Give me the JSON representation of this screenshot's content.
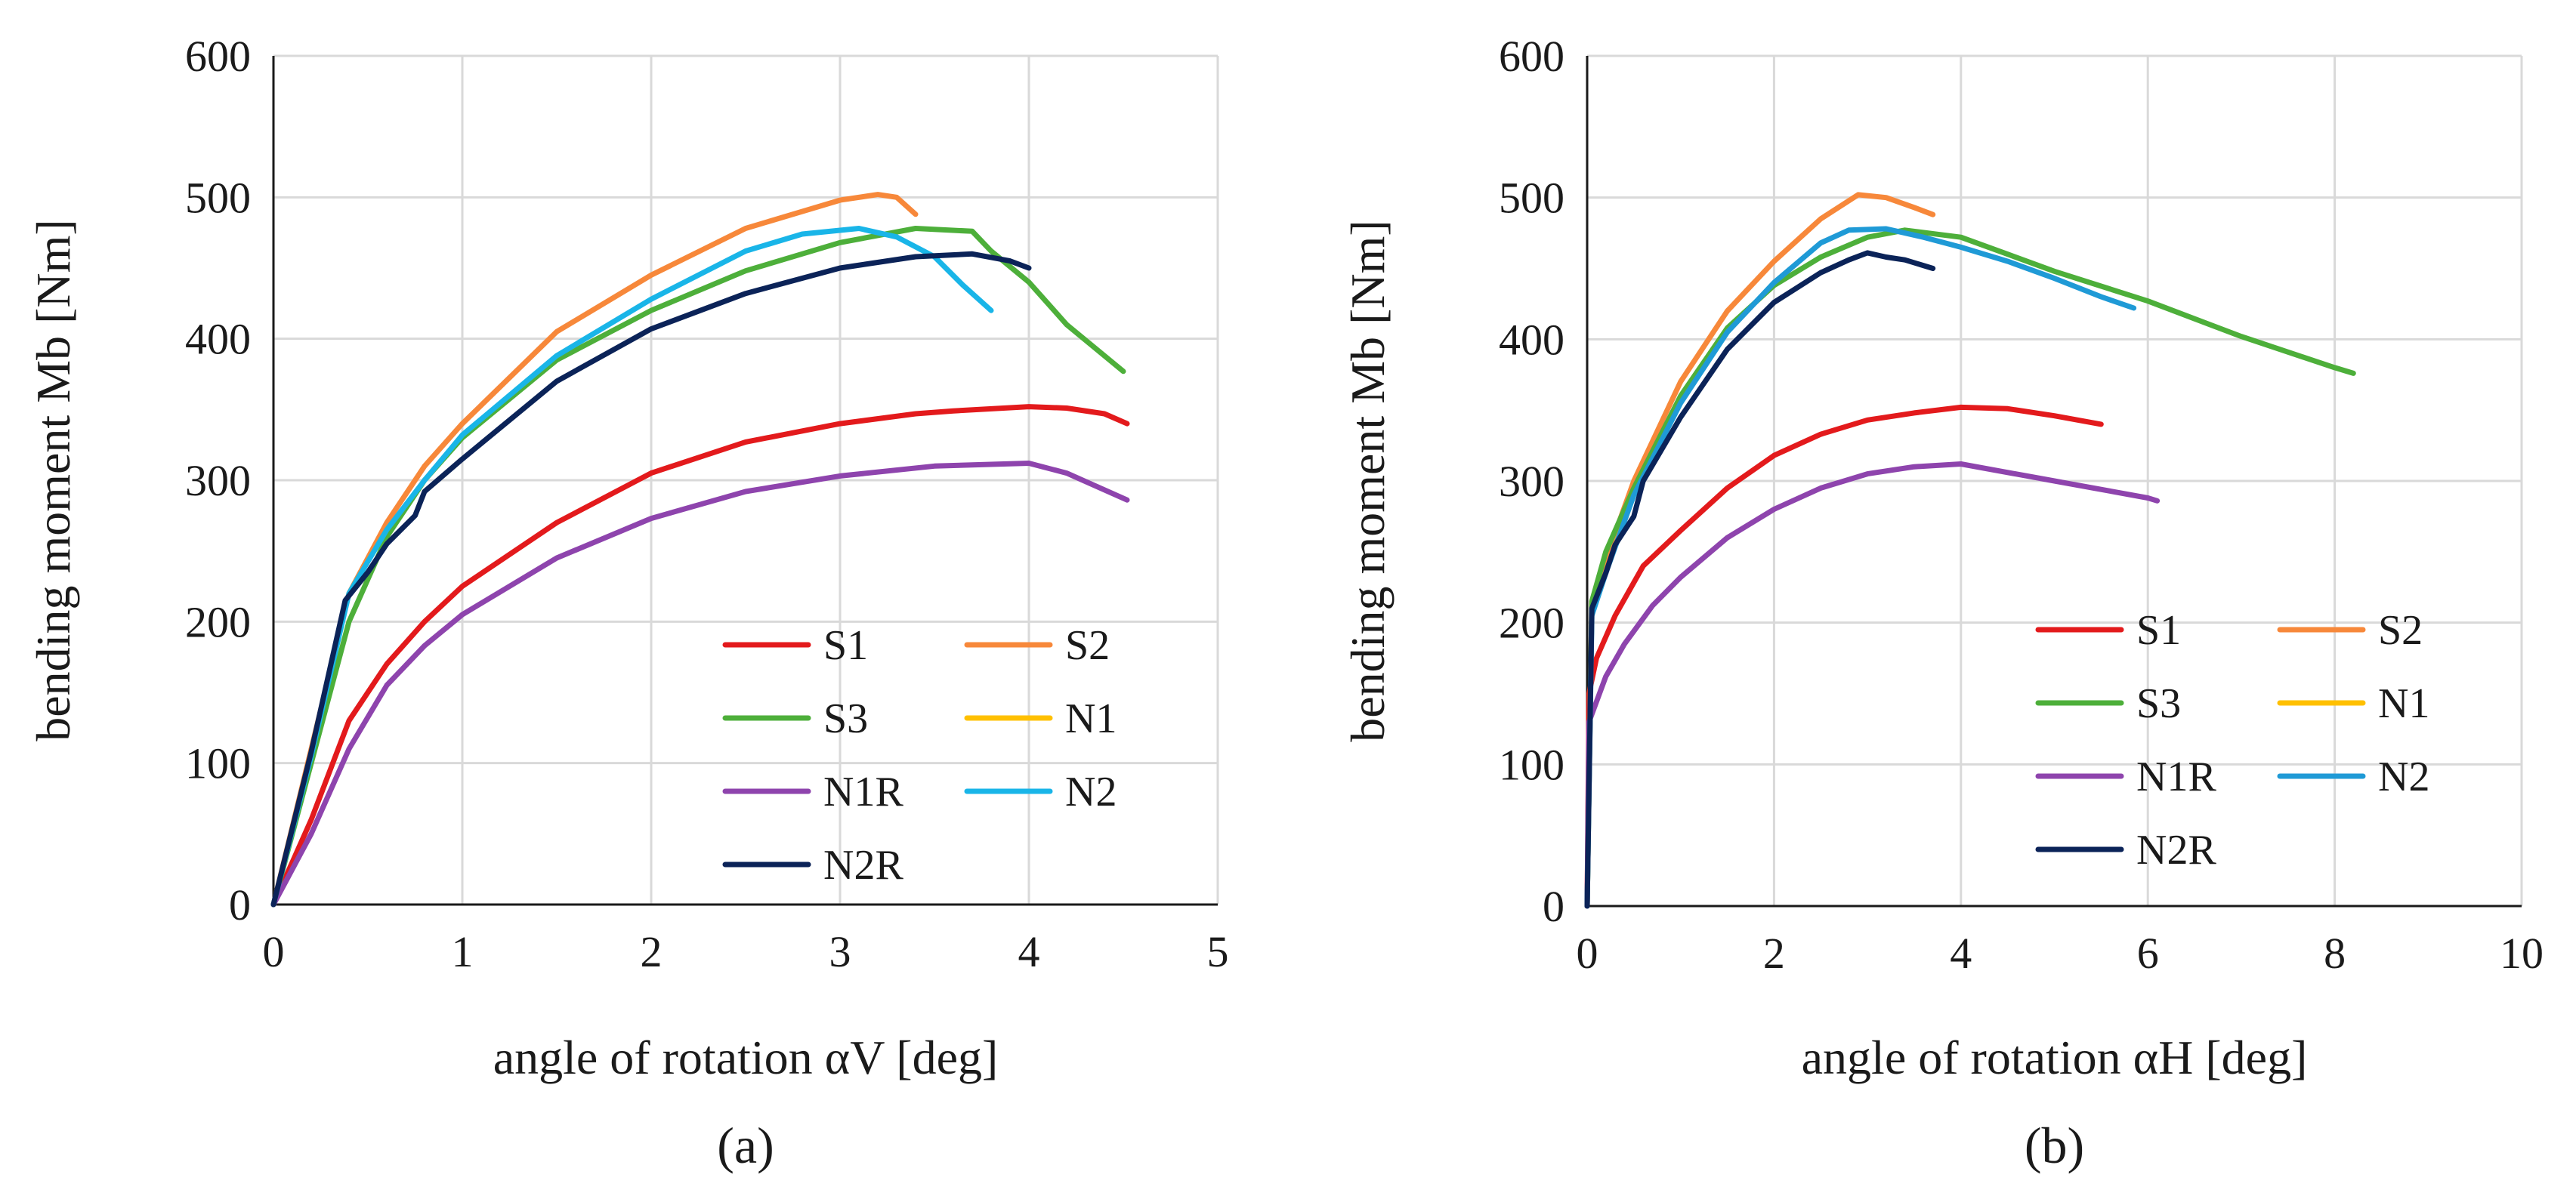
{
  "chart_data": [
    {
      "type": "line",
      "panel_label": "(a)",
      "xlabel": "angle of rotation αV [deg]",
      "ylabel": "bending moment Mb [Nm]",
      "xlim": [
        0,
        5
      ],
      "ylim": [
        0,
        600
      ],
      "xticks": [
        "0",
        "1",
        "2",
        "3",
        "4",
        "5"
      ],
      "yticks": [
        "0",
        "100",
        "200",
        "300",
        "400",
        "500",
        "600"
      ],
      "grid": true,
      "legend_position": "bottom-right",
      "series": [
        {
          "name": "S1",
          "color": "#e31a1c",
          "points": [
            [
              0,
              0
            ],
            [
              0.2,
              60
            ],
            [
              0.4,
              130
            ],
            [
              0.6,
              170
            ],
            [
              0.8,
              200
            ],
            [
              1,
              225
            ],
            [
              1.5,
              270
            ],
            [
              2,
              305
            ],
            [
              2.5,
              327
            ],
            [
              3,
              340
            ],
            [
              3.4,
              347
            ],
            [
              3.6,
              349
            ],
            [
              4,
              352
            ],
            [
              4.2,
              351
            ],
            [
              4.4,
              347
            ],
            [
              4.52,
              340
            ]
          ]
        },
        {
          "name": "S2",
          "color": "#f7883a",
          "points": [
            [
              0,
              0
            ],
            [
              0.2,
              110
            ],
            [
              0.4,
              220
            ],
            [
              0.6,
              270
            ],
            [
              0.8,
              310
            ],
            [
              1,
              340
            ],
            [
              1.5,
              405
            ],
            [
              2,
              445
            ],
            [
              2.5,
              478
            ],
            [
              3,
              498
            ],
            [
              3.2,
              502
            ],
            [
              3.3,
              500
            ],
            [
              3.4,
              488
            ]
          ]
        },
        {
          "name": "S3",
          "color": "#4daf3a",
          "points": [
            [
              0,
              0
            ],
            [
              0.2,
              100
            ],
            [
              0.4,
              200
            ],
            [
              0.5,
              230
            ],
            [
              0.6,
              260
            ],
            [
              0.8,
              300
            ],
            [
              1,
              330
            ],
            [
              1.5,
              385
            ],
            [
              2,
              420
            ],
            [
              2.5,
              448
            ],
            [
              3,
              468
            ],
            [
              3.4,
              478
            ],
            [
              3.7,
              476
            ],
            [
              3.8,
              462
            ],
            [
              4,
              440
            ],
            [
              4.2,
              410
            ],
            [
              4.5,
              377
            ]
          ]
        },
        {
          "name": "N1",
          "color": "#ffc000",
          "points": []
        },
        {
          "name": "N1R",
          "color": "#8e44ad",
          "points": [
            [
              0,
              0
            ],
            [
              0.2,
              50
            ],
            [
              0.4,
              110
            ],
            [
              0.6,
              155
            ],
            [
              0.8,
              183
            ],
            [
              1,
              205
            ],
            [
              1.5,
              245
            ],
            [
              2,
              273
            ],
            [
              2.5,
              292
            ],
            [
              3,
              303
            ],
            [
              3.5,
              310
            ],
            [
              4,
              312
            ],
            [
              4.2,
              305
            ],
            [
              4.52,
              286
            ]
          ]
        },
        {
          "name": "N2",
          "color": "#19b5e8",
          "points": [
            [
              0,
              0
            ],
            [
              0.2,
              105
            ],
            [
              0.4,
              220
            ],
            [
              0.6,
              265
            ],
            [
              0.8,
              300
            ],
            [
              1,
              332
            ],
            [
              1.5,
              388
            ],
            [
              2,
              428
            ],
            [
              2.5,
              462
            ],
            [
              2.8,
              474
            ],
            [
              3.1,
              478
            ],
            [
              3.3,
              472
            ],
            [
              3.5,
              458
            ],
            [
              3.65,
              438
            ],
            [
              3.8,
              420
            ]
          ]
        },
        {
          "name": "N2R",
          "color": "#0b2358",
          "points": [
            [
              0,
              0
            ],
            [
              0.2,
              108
            ],
            [
              0.38,
              215
            ],
            [
              0.5,
              235
            ],
            [
              0.6,
              255
            ],
            [
              0.75,
              275
            ],
            [
              0.8,
              292
            ],
            [
              1,
              315
            ],
            [
              1.5,
              370
            ],
            [
              2,
              407
            ],
            [
              2.5,
              432
            ],
            [
              3,
              450
            ],
            [
              3.4,
              458
            ],
            [
              3.7,
              460
            ],
            [
              3.9,
              455
            ],
            [
              4,
              450
            ]
          ]
        }
      ]
    },
    {
      "type": "line",
      "panel_label": "(b)",
      "xlabel": "angle of rotation αH [deg]",
      "ylabel": "bending moment Mb [Nm]",
      "xlim": [
        0,
        10
      ],
      "ylim": [
        0,
        600
      ],
      "xticks": [
        "0",
        "2",
        "4",
        "6",
        "8",
        "10"
      ],
      "yticks": [
        "0",
        "100",
        "200",
        "300",
        "400",
        "500",
        "600"
      ],
      "grid": true,
      "legend_position": "bottom-right",
      "series": [
        {
          "name": "S1",
          "color": "#e31a1c",
          "points": [
            [
              0,
              0
            ],
            [
              0.02,
              150
            ],
            [
              0.1,
              175
            ],
            [
              0.3,
              205
            ],
            [
              0.6,
              240
            ],
            [
              1,
              265
            ],
            [
              1.5,
              295
            ],
            [
              2,
              318
            ],
            [
              2.5,
              333
            ],
            [
              3,
              343
            ],
            [
              3.5,
              348
            ],
            [
              4,
              352
            ],
            [
              4.5,
              351
            ],
            [
              5,
              346
            ],
            [
              5.5,
              340
            ]
          ]
        },
        {
          "name": "S2",
          "color": "#f7883a",
          "points": [
            [
              0,
              0
            ],
            [
              0.05,
              215
            ],
            [
              0.2,
              245
            ],
            [
              0.5,
              300
            ],
            [
              1,
              370
            ],
            [
              1.5,
              420
            ],
            [
              2,
              455
            ],
            [
              2.5,
              485
            ],
            [
              2.9,
              502
            ],
            [
              3.2,
              500
            ],
            [
              3.5,
              493
            ],
            [
              3.7,
              488
            ]
          ]
        },
        {
          "name": "S3",
          "color": "#4daf3a",
          "points": [
            [
              0,
              0
            ],
            [
              0.05,
              215
            ],
            [
              0.2,
              250
            ],
            [
              0.5,
              295
            ],
            [
              1,
              360
            ],
            [
              1.5,
              408
            ],
            [
              2,
              438
            ],
            [
              2.5,
              458
            ],
            [
              3,
              472
            ],
            [
              3.4,
              477
            ],
            [
              4,
              472
            ],
            [
              4.5,
              460
            ],
            [
              5,
              448
            ],
            [
              6,
              427
            ],
            [
              7,
              402
            ],
            [
              8,
              380
            ],
            [
              8.2,
              376
            ]
          ]
        },
        {
          "name": "N1",
          "color": "#ffc000",
          "points": []
        },
        {
          "name": "N1R",
          "color": "#8e44ad",
          "points": [
            [
              0,
              0
            ],
            [
              0.02,
              130
            ],
            [
              0.2,
              162
            ],
            [
              0.4,
              185
            ],
            [
              0.7,
              212
            ],
            [
              1,
              232
            ],
            [
              1.5,
              260
            ],
            [
              2,
              280
            ],
            [
              2.5,
              295
            ],
            [
              3,
              305
            ],
            [
              3.5,
              310
            ],
            [
              4,
              312
            ],
            [
              5,
              300
            ],
            [
              6,
              288
            ],
            [
              6.1,
              286
            ]
          ]
        },
        {
          "name": "N2",
          "color": "#1f9ad6",
          "points": [
            [
              0,
              0
            ],
            [
              0.05,
              205
            ],
            [
              0.2,
              235
            ],
            [
              0.5,
              290
            ],
            [
              1,
              355
            ],
            [
              1.5,
              405
            ],
            [
              2,
              440
            ],
            [
              2.5,
              468
            ],
            [
              2.8,
              477
            ],
            [
              3.2,
              478
            ],
            [
              3.6,
              472
            ],
            [
              4,
              465
            ],
            [
              4.5,
              455
            ],
            [
              5,
              443
            ],
            [
              5.5,
              430
            ],
            [
              5.85,
              422
            ]
          ]
        },
        {
          "name": "N2R",
          "color": "#0b2358",
          "points": [
            [
              0,
              0
            ],
            [
              0.05,
              210
            ],
            [
              0.2,
              235
            ],
            [
              0.3,
              255
            ],
            [
              0.5,
              275
            ],
            [
              0.6,
              300
            ],
            [
              1,
              345
            ],
            [
              1.5,
              393
            ],
            [
              2,
              426
            ],
            [
              2.5,
              447
            ],
            [
              2.8,
              456
            ],
            [
              3,
              461
            ],
            [
              3.2,
              458
            ],
            [
              3.4,
              456
            ],
            [
              3.7,
              450
            ]
          ]
        }
      ]
    }
  ]
}
